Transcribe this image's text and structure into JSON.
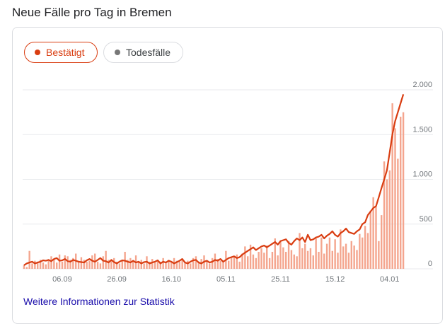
{
  "header": {
    "title": "Neue Fälle pro Tag in Bremen"
  },
  "chips": [
    {
      "label": "Bestätigt",
      "selected": true,
      "color": "#d93d11"
    },
    {
      "label": "Todesfälle",
      "selected": false,
      "color": "#777777"
    }
  ],
  "footer": {
    "link_label": "Weitere Informationen zur Statistik"
  },
  "colors": {
    "bar": "#f4a58e",
    "line": "#d93d11",
    "grid": "#e8eaed"
  },
  "chart_data": {
    "type": "bar",
    "title": "Neue Fälle pro Tag in Bremen",
    "xlabel": "",
    "ylabel": "",
    "ylim": [
      0,
      2000
    ],
    "y_ticks": [
      {
        "value": 2000,
        "label": "2.000"
      },
      {
        "value": 1500,
        "label": "1.500"
      },
      {
        "value": 1000,
        "label": "1.000"
      },
      {
        "value": 500,
        "label": "500"
      },
      {
        "value": 0,
        "label": "0"
      }
    ],
    "x_ticks": [
      {
        "index": 14,
        "label": "06.09"
      },
      {
        "index": 34,
        "label": "26.09"
      },
      {
        "index": 54,
        "label": "16.10"
      },
      {
        "index": 74,
        "label": "05.11"
      },
      {
        "index": 94,
        "label": "25.11"
      },
      {
        "index": 114,
        "label": "15.12"
      },
      {
        "index": 134,
        "label": "04.01"
      }
    ],
    "grid": true,
    "series": [
      {
        "kind": "bar",
        "values": [
          40,
          60,
          70,
          80,
          60,
          70,
          80,
          95,
          90,
          100,
          85,
          110,
          120,
          90,
          95,
          110,
          85,
          80,
          100,
          90,
          80,
          75,
          70,
          95,
          110,
          90,
          80,
          100,
          120,
          90,
          85,
          70,
          100,
          75,
          60,
          80,
          95,
          90,
          80,
          70,
          90,
          70,
          80,
          60,
          75,
          80,
          60,
          70,
          80,
          95,
          60,
          80,
          70,
          90,
          80,
          60,
          75,
          90,
          110,
          70,
          60,
          80,
          95,
          100,
          70,
          60,
          80,
          90,
          70,
          80,
          100,
          90,
          110,
          80,
          100,
          120,
          130,
          140,
          120,
          130,
          160,
          180,
          200,
          220,
          240,
          210,
          230,
          250,
          260,
          240,
          260,
          280,
          300,
          270,
          310,
          320,
          330,
          290,
          270,
          310,
          340,
          320,
          350,
          300,
          380,
          320,
          330,
          350,
          360,
          380,
          340,
          370,
          390,
          420,
          380,
          360,
          400,
          420,
          450,
          410,
          400,
          390,
          420,
          440,
          500,
          520,
          600,
          640,
          680,
          700,
          800,
          900,
          1000,
          1100,
          1300,
          1500,
          1650,
          1750,
          1850,
          1950
        ],
        "daily": [
          40,
          20,
          200,
          60,
          90,
          80,
          100,
          70,
          50,
          90,
          140,
          110,
          70,
          160,
          80,
          150,
          140,
          100,
          120,
          170,
          90,
          130,
          100,
          80,
          90,
          150,
          170,
          80,
          60,
          140,
          200,
          100,
          90,
          120,
          80,
          60,
          90,
          190,
          100,
          120,
          80,
          150,
          70,
          100,
          60,
          140,
          80,
          110,
          70,
          90,
          80,
          120,
          70,
          100,
          80,
          120,
          90,
          80,
          100,
          70,
          90,
          60,
          120,
          140,
          80,
          110,
          150,
          90,
          60,
          120,
          170,
          110,
          90,
          80,
          200,
          90,
          120,
          130,
          160,
          80,
          170,
          250,
          140,
          270,
          160,
          120,
          190,
          230,
          180,
          260,
          120,
          190,
          340,
          150,
          300,
          240,
          190,
          310,
          210,
          160,
          140,
          400,
          230,
          280,
          200,
          230,
          150,
          340,
          190,
          350,
          170,
          280,
          350,
          200,
          330,
          180,
          440,
          250,
          280,
          180,
          310,
          260,
          210,
          390,
          350,
          480,
          400,
          650,
          800,
          690,
          310,
          600,
          1200,
          1000,
          1100,
          1850,
          1570,
          1230,
          1700,
          1750
        ]
      }
    ]
  }
}
